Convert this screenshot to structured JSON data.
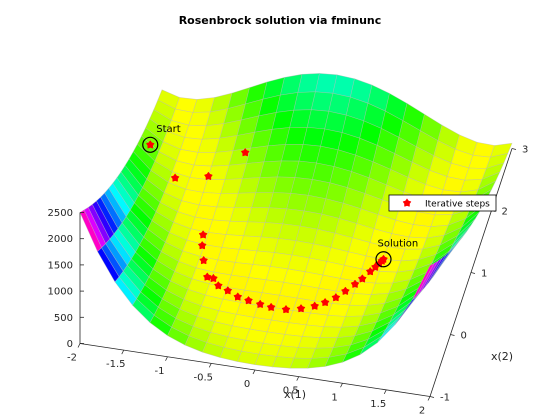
{
  "chart_data": {
    "type": "surface3d",
    "title": "Rosenbrock solution via fminunc",
    "xlabel": "x(1)",
    "ylabel": "x(2)",
    "zlabel": "",
    "xlim": [
      -2,
      2
    ],
    "ylim": [
      -1,
      3
    ],
    "zlim": [
      0,
      2500
    ],
    "xticks": [
      "-2",
      "-1.5",
      "-1",
      "-0.5",
      "0",
      "0.5",
      "1",
      "1.5",
      "2"
    ],
    "yticks": [
      "-1",
      "0",
      "1",
      "2",
      "3"
    ],
    "zticks": [
      "0",
      "500",
      "1000",
      "1500",
      "2000",
      "2500"
    ],
    "colormap": "hsv",
    "function": "rosenbrock",
    "legend": {
      "entries": [
        "Iterative steps"
      ],
      "placement": "right"
    },
    "annotations": [
      {
        "text": "Start",
        "x": -1.9,
        "y": 2,
        "z": 267.62
      },
      {
        "text": "Solution",
        "x": 1,
        "y": 1,
        "z": 0
      }
    ],
    "series": [
      {
        "name": "Iterative steps",
        "color": "#ff0000",
        "marker": "pentagram",
        "points": [
          [
            -1.9,
            2.0
          ],
          [
            -1.55,
            1.72
          ],
          [
            -1.2,
            1.85
          ],
          [
            -0.85,
            2.15
          ],
          [
            -1.05,
            0.95
          ],
          [
            -1.02,
            0.78
          ],
          [
            -0.95,
            0.55
          ],
          [
            -0.85,
            0.3
          ],
          [
            -0.78,
            0.3
          ],
          [
            -0.7,
            0.2
          ],
          [
            -0.58,
            0.15
          ],
          [
            -0.45,
            0.08
          ],
          [
            -0.32,
            0.05
          ],
          [
            -0.18,
            0.02
          ],
          [
            -0.05,
            0.0
          ],
          [
            0.12,
            0.0
          ],
          [
            0.28,
            0.05
          ],
          [
            0.42,
            0.12
          ],
          [
            0.52,
            0.2
          ],
          [
            0.62,
            0.3
          ],
          [
            0.7,
            0.42
          ],
          [
            0.78,
            0.55
          ],
          [
            0.84,
            0.65
          ],
          [
            0.9,
            0.78
          ],
          [
            0.94,
            0.86
          ],
          [
            0.97,
            0.92
          ],
          [
            0.99,
            0.97
          ],
          [
            1.0,
            1.0
          ]
        ]
      }
    ]
  }
}
